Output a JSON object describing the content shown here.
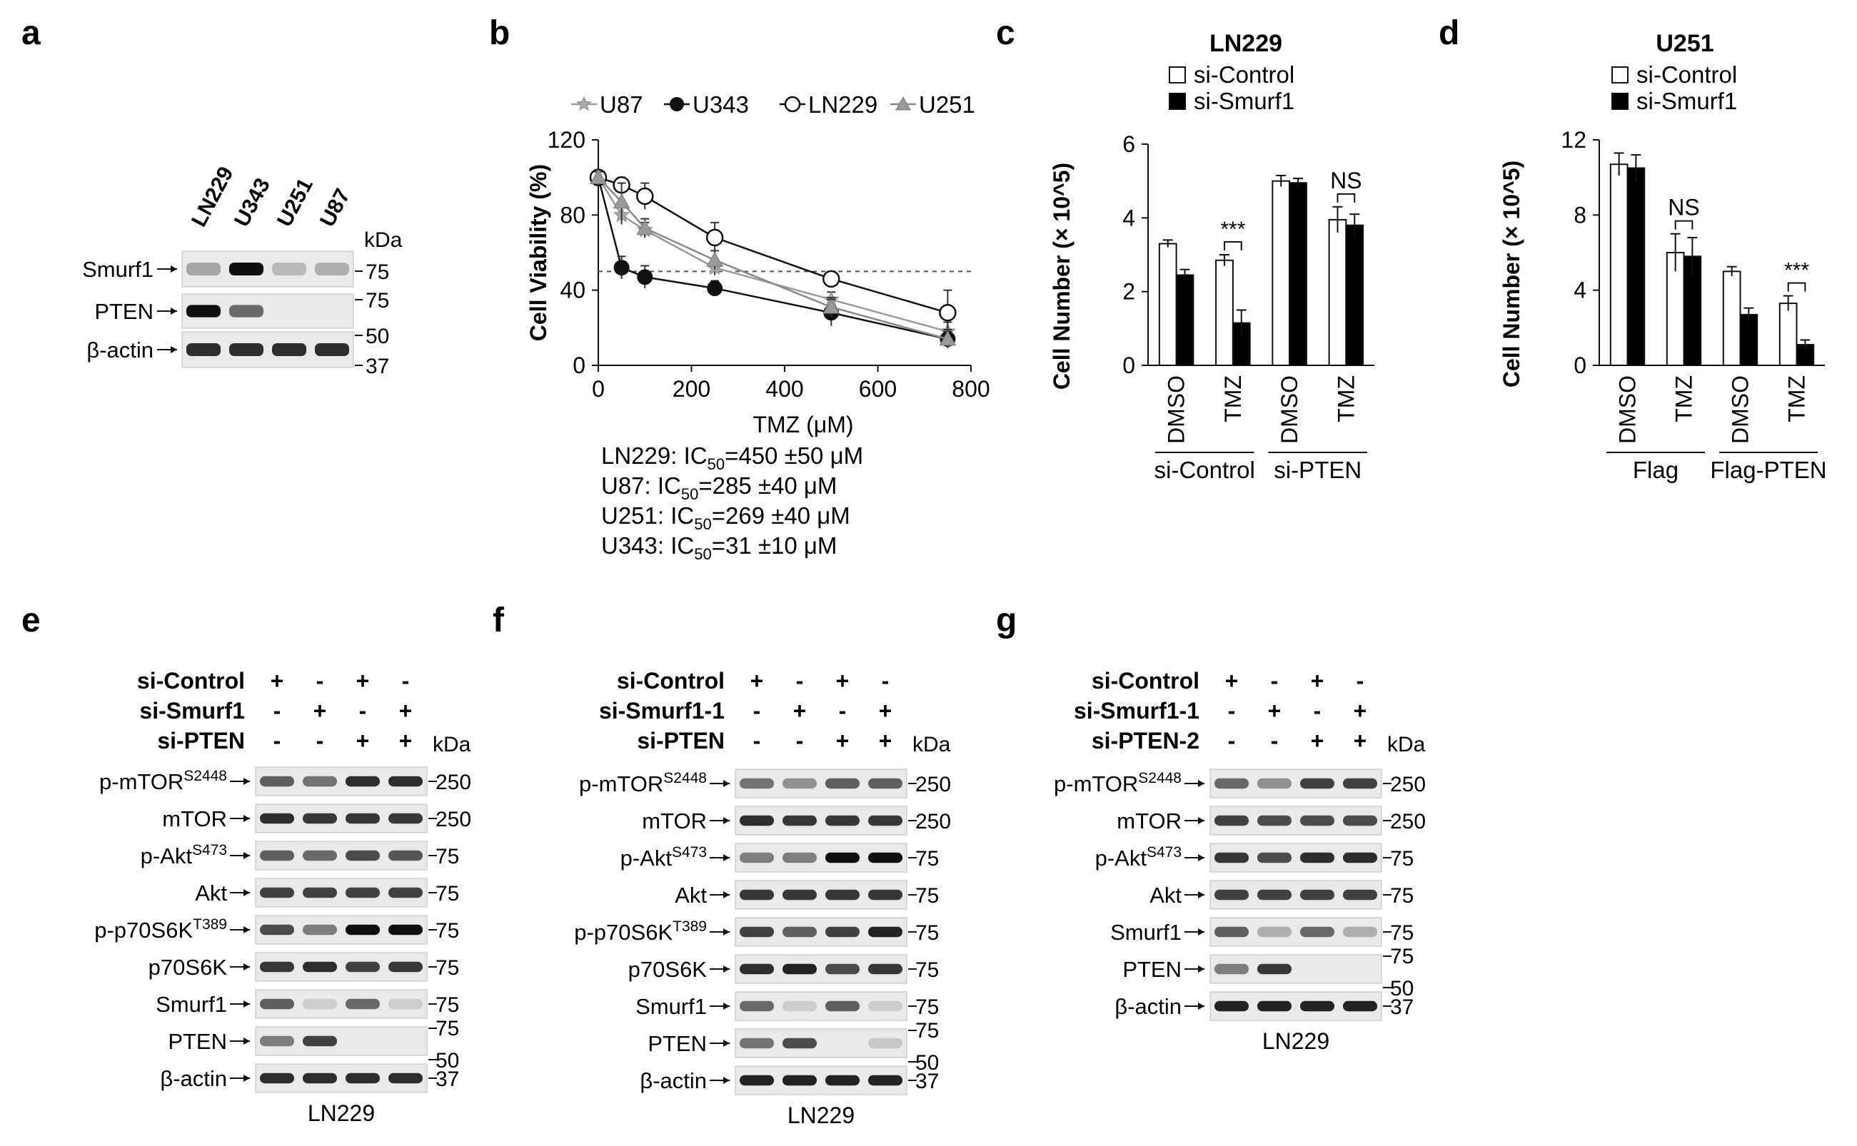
{
  "panels": {
    "a": {
      "letter": "a",
      "lanes": [
        "LN229",
        "U343",
        "U251",
        "U87"
      ],
      "kda_label": "kDa",
      "blots": [
        {
          "label": "Smurf1",
          "bands": [
            0.25,
            1.0,
            0.15,
            0.2
          ],
          "markers": [
            "75"
          ]
        },
        {
          "label": "PTEN",
          "bands": [
            1.0,
            0.55,
            0.0,
            0.0
          ],
          "markers": [
            "75",
            "50"
          ]
        },
        {
          "label": "β-actin",
          "bands": [
            0.85,
            0.85,
            0.85,
            0.85
          ],
          "markers": [
            "37"
          ]
        }
      ]
    },
    "b": {
      "letter": "b",
      "ic50_lines": [
        {
          "cell": "LN229",
          "value": "=450 ±50 μM"
        },
        {
          "cell": "U87",
          "value": "=285 ±40 μM"
        },
        {
          "cell": "U251",
          "value": "=269 ±40 μM"
        },
        {
          "cell": "U343",
          "value": "=31 ±10 μM"
        }
      ],
      "ic_label": "IC",
      "ic_sub": "50"
    },
    "c": {
      "letter": "c"
    },
    "d": {
      "letter": "d"
    },
    "e": {
      "letter": "e",
      "treatments": [
        {
          "label": "si-Control",
          "signs": [
            "+",
            "-",
            "+",
            "-"
          ]
        },
        {
          "label": "si-Smurf1",
          "signs": [
            "-",
            "+",
            "-",
            "+"
          ]
        },
        {
          "label": "si-PTEN",
          "signs": [
            "-",
            "-",
            "+",
            "+"
          ]
        }
      ],
      "kda_label": "kDa",
      "cell_line": "LN229",
      "blots": [
        {
          "label": "p-mTOR",
          "sup": "S2448",
          "marker": "250",
          "bands": [
            0.6,
            0.5,
            0.85,
            0.85
          ]
        },
        {
          "label": "mTOR",
          "sup": "",
          "marker": "250",
          "bands": [
            0.85,
            0.8,
            0.8,
            0.8
          ]
        },
        {
          "label": "p-Akt",
          "sup": "S473",
          "marker": "75",
          "bands": [
            0.6,
            0.55,
            0.7,
            0.65
          ]
        },
        {
          "label": "Akt",
          "sup": "",
          "marker": "75",
          "bands": [
            0.75,
            0.75,
            0.75,
            0.75
          ]
        },
        {
          "label": "p-p70S6K",
          "sup": "T389",
          "marker": "75",
          "bands": [
            0.7,
            0.45,
            1.0,
            1.0
          ]
        },
        {
          "label": "p70S6K",
          "sup": "",
          "marker": "75",
          "bands": [
            0.8,
            0.85,
            0.75,
            0.8
          ]
        },
        {
          "label": "Smurf1",
          "sup": "",
          "marker": "75",
          "bands": [
            0.6,
            0.05,
            0.55,
            0.05
          ]
        },
        {
          "label": "PTEN",
          "sup": "",
          "marker": "75 / 50",
          "bands": [
            0.45,
            0.75,
            0.0,
            0.0
          ]
        },
        {
          "label": "β-actin",
          "sup": "",
          "marker": "37",
          "bands": [
            0.85,
            0.85,
            0.85,
            0.85
          ]
        }
      ]
    },
    "f": {
      "letter": "f",
      "treatments": [
        {
          "label": "si-Control",
          "signs": [
            "+",
            "-",
            "+",
            "-"
          ]
        },
        {
          "label": "si-Smurf1-1",
          "signs": [
            "-",
            "+",
            "-",
            "+"
          ]
        },
        {
          "label": "si-PTEN",
          "signs": [
            "-",
            "-",
            "+",
            "+"
          ]
        }
      ],
      "kda_label": "kDa",
      "cell_line": "LN229",
      "blots": [
        {
          "label": "p-mTOR",
          "sup": "S2448",
          "marker": "250",
          "bands": [
            0.5,
            0.35,
            0.6,
            0.6
          ]
        },
        {
          "label": "mTOR",
          "sup": "",
          "marker": "250",
          "bands": [
            0.85,
            0.8,
            0.8,
            0.8
          ]
        },
        {
          "label": "p-Akt",
          "sup": "S473",
          "marker": "75",
          "bands": [
            0.45,
            0.45,
            1.0,
            1.0
          ]
        },
        {
          "label": "Akt",
          "sup": "",
          "marker": "75",
          "bands": [
            0.8,
            0.8,
            0.8,
            0.8
          ]
        },
        {
          "label": "p-p70S6K",
          "sup": "T389",
          "marker": "75",
          "bands": [
            0.75,
            0.6,
            0.75,
            0.9
          ]
        },
        {
          "label": "p70S6K",
          "sup": "",
          "marker": "75",
          "bands": [
            0.85,
            0.9,
            0.7,
            0.8
          ]
        },
        {
          "label": "Smurf1",
          "sup": "",
          "marker": "75",
          "bands": [
            0.55,
            0.05,
            0.6,
            0.05
          ]
        },
        {
          "label": "PTEN",
          "sup": "",
          "marker": "75 / 50",
          "bands": [
            0.5,
            0.7,
            0.0,
            0.08
          ]
        },
        {
          "label": "β-actin",
          "sup": "",
          "marker": "37",
          "bands": [
            0.9,
            0.9,
            0.9,
            0.9
          ]
        }
      ]
    },
    "g": {
      "letter": "g",
      "treatments": [
        {
          "label": "si-Control",
          "signs": [
            "+",
            "-",
            "+",
            "-"
          ]
        },
        {
          "label": "si-Smurf1-1",
          "signs": [
            "-",
            "+",
            "-",
            "+"
          ]
        },
        {
          "label": "si-PTEN-2",
          "signs": [
            "-",
            "-",
            "+",
            "+"
          ]
        }
      ],
      "kda_label": "kDa",
      "cell_line": "LN229",
      "blots": [
        {
          "label": "p-mTOR",
          "sup": "S2448",
          "marker": "250",
          "bands": [
            0.55,
            0.35,
            0.75,
            0.75
          ]
        },
        {
          "label": "mTOR",
          "sup": "",
          "marker": "250",
          "bands": [
            0.75,
            0.7,
            0.7,
            0.7
          ]
        },
        {
          "label": "p-Akt",
          "sup": "S473",
          "marker": "75",
          "bands": [
            0.8,
            0.7,
            0.85,
            0.85
          ]
        },
        {
          "label": "Akt",
          "sup": "",
          "marker": "75",
          "bands": [
            0.75,
            0.75,
            0.75,
            0.75
          ]
        },
        {
          "label": "Smurf1",
          "sup": "",
          "marker": "75",
          "bands": [
            0.6,
            0.2,
            0.55,
            0.2
          ]
        },
        {
          "label": "PTEN",
          "sup": "",
          "marker": "75 / 50",
          "bands": [
            0.45,
            0.8,
            0.0,
            0.0
          ]
        },
        {
          "label": "β-actin",
          "sup": "",
          "marker": "37",
          "bands": [
            0.9,
            0.9,
            0.9,
            0.9
          ]
        }
      ]
    }
  },
  "chart_data": [
    {
      "id": "b",
      "type": "line",
      "x": [
        0,
        50,
        100,
        250,
        500,
        750
      ],
      "series": [
        {
          "name": "U87",
          "marker": "gray-star",
          "values": [
            100,
            80,
            72,
            52,
            35,
            18
          ],
          "errors": [
            3,
            5,
            4,
            4,
            4,
            5
          ]
        },
        {
          "name": "U343",
          "marker": "filled-circle",
          "values": [
            100,
            52,
            47,
            41,
            28,
            14
          ],
          "errors": [
            3,
            6,
            6,
            4,
            7,
            5
          ]
        },
        {
          "name": "LN229",
          "marker": "open-circle",
          "values": [
            100,
            96,
            90,
            68,
            46,
            28
          ],
          "errors": [
            3,
            4,
            7,
            8,
            4,
            12
          ]
        },
        {
          "name": "U251",
          "marker": "gray-triangle",
          "values": [
            100,
            87,
            73,
            56,
            31,
            14
          ],
          "errors": [
            3,
            10,
            5,
            5,
            5,
            4
          ]
        }
      ],
      "xlabel": "TMZ (μM)",
      "ylabel": "Cell Viability (%)",
      "xlim": [
        0,
        800
      ],
      "ylim": [
        0,
        120
      ],
      "xticks": [
        0,
        200,
        400,
        600,
        800
      ],
      "yticks": [
        0,
        40,
        80,
        120
      ],
      "reference_line": 50,
      "legend": "top"
    },
    {
      "id": "c",
      "type": "bar",
      "title": "LN229",
      "categories": [
        "DMSO",
        "TMZ",
        "DMSO",
        "TMZ"
      ],
      "groups": [
        {
          "label": "si-Control",
          "span": [
            0,
            1
          ]
        },
        {
          "label": "si-PTEN",
          "span": [
            2,
            3
          ]
        }
      ],
      "series": [
        {
          "name": "si-Control",
          "color": "#ffffff",
          "values": [
            3.3,
            2.85,
            5.0,
            3.95
          ],
          "errors": [
            0.1,
            0.15,
            0.15,
            0.35
          ]
        },
        {
          "name": "si-Smurf1",
          "color": "#000000",
          "values": [
            2.45,
            1.15,
            4.95,
            3.8
          ],
          "errors": [
            0.15,
            0.35,
            0.12,
            0.3
          ]
        }
      ],
      "ylabel": "Cell Number (× 10^5)",
      "ylim": [
        0,
        6
      ],
      "yticks": [
        0,
        2,
        4,
        6
      ],
      "annotations": [
        {
          "category": 1,
          "text": "***"
        },
        {
          "category": 3,
          "text": "NS"
        }
      ],
      "legend": "top"
    },
    {
      "id": "d",
      "type": "bar",
      "title": "U251",
      "categories": [
        "DMSO",
        "TMZ",
        "DMSO",
        "TMZ"
      ],
      "groups": [
        {
          "label": "Flag",
          "span": [
            0,
            1
          ]
        },
        {
          "label": "Flag-PTEN",
          "span": [
            2,
            3
          ]
        }
      ],
      "series": [
        {
          "name": "si-Control",
          "color": "#ffffff",
          "values": [
            10.7,
            6.0,
            5.0,
            3.3
          ],
          "errors": [
            0.6,
            1.0,
            0.25,
            0.4
          ]
        },
        {
          "name": "si-Smurf1",
          "color": "#000000",
          "values": [
            10.5,
            5.8,
            2.7,
            1.1
          ],
          "errors": [
            0.7,
            1.0,
            0.35,
            0.25
          ]
        }
      ],
      "ylabel": "Cell Number (× 10^5)",
      "ylim": [
        0,
        12
      ],
      "yticks": [
        0,
        4,
        8,
        12
      ],
      "annotations": [
        {
          "category": 1,
          "text": "NS"
        },
        {
          "category": 3,
          "text": "***"
        }
      ],
      "legend": "top"
    }
  ]
}
